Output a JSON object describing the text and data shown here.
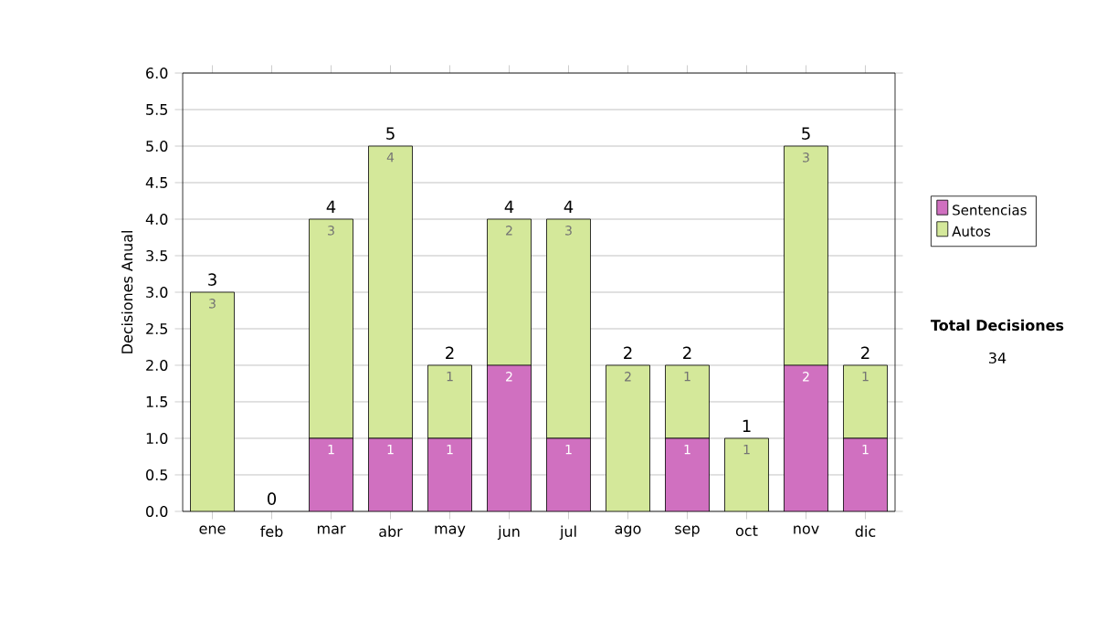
{
  "chart_data": {
    "type": "bar",
    "stacked": true,
    "ylabel": "Decisiones Anual",
    "categories": [
      "ene",
      "feb",
      "mar",
      "abr",
      "may",
      "jun",
      "jul",
      "ago",
      "sep",
      "oct",
      "nov",
      "dic"
    ],
    "series": [
      {
        "name": "Sentencias",
        "color": "#d070c0",
        "values": [
          0,
          0,
          1,
          1,
          1,
          2,
          1,
          0,
          1,
          0,
          2,
          1
        ],
        "value_labels": [
          null,
          null,
          "1",
          "1",
          "1",
          "2",
          "1",
          null,
          "1",
          null,
          "2",
          "1"
        ]
      },
      {
        "name": "Autos",
        "color": "#d4e89a",
        "values": [
          3,
          0,
          3,
          4,
          1,
          2,
          3,
          2,
          1,
          1,
          3,
          1
        ],
        "value_labels": [
          "3",
          null,
          "3",
          "4",
          "1",
          "2",
          "3",
          "2",
          "1",
          "1",
          "3",
          "1"
        ]
      }
    ],
    "totals": [
      "3",
      "0",
      "4",
      "5",
      "2",
      "4",
      "4",
      "2",
      "2",
      "1",
      "5",
      "2"
    ],
    "ylim": [
      0,
      6
    ],
    "yticks": [
      {
        "value": 0,
        "label": "0.0"
      },
      {
        "value": 0.5,
        "label": "0.5"
      },
      {
        "value": 1,
        "label": "1.0"
      },
      {
        "value": 1.5,
        "label": "1.5"
      },
      {
        "value": 2,
        "label": "2.0"
      },
      {
        "value": 2.5,
        "label": "2.5"
      },
      {
        "value": 3,
        "label": "3.0"
      },
      {
        "value": 3.5,
        "label": "3.5"
      },
      {
        "value": 4,
        "label": "4.0"
      },
      {
        "value": 4.5,
        "label": "4.5"
      },
      {
        "value": 5,
        "label": "5.0"
      },
      {
        "value": 5.5,
        "label": "5.5"
      },
      {
        "value": 6,
        "label": "6.0"
      }
    ],
    "grid": "y",
    "legend": "right",
    "annotations": [
      "**Total Decisiones**",
      "34"
    ]
  }
}
